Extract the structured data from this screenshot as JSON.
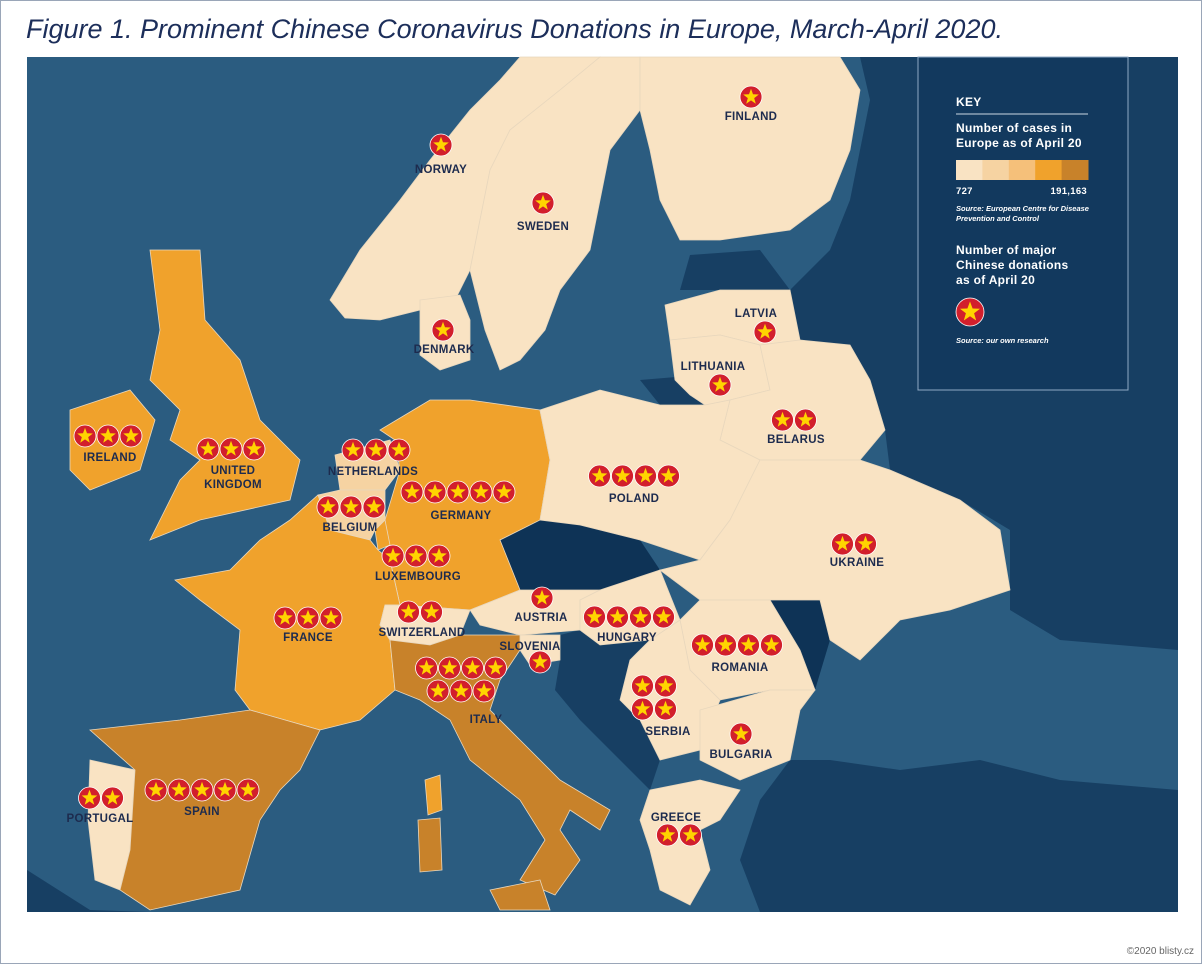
{
  "title": "Figure 1. Prominent Chinese Coronavirus Donations in Europe, March-April 2020.",
  "key": {
    "heading": "KEY",
    "cases_label": "Number of cases in Europe as of April 20",
    "scale_colors": [
      "#f9e3c3",
      "#f6d3a2",
      "#f5c07a",
      "#f0a22c",
      "#c8822a"
    ],
    "scale": [
      727,
      {
        "value": 191163,
        "label": "191,163"
      }
    ],
    "cases_source": "Source: European Centre for Disease Prevention and Control",
    "donations_label": "Number of major Chinese donations as of April 20",
    "donations_source": "Source: our own research"
  },
  "countries": [
    {
      "name": "NORWAY",
      "donations": 1,
      "color": "#f9e3c3"
    },
    {
      "name": "SWEDEN",
      "donations": 1,
      "color": "#f9e3c3"
    },
    {
      "name": "FINLAND",
      "donations": 1,
      "color": "#f9e3c3"
    },
    {
      "name": "DENMARK",
      "donations": 1,
      "color": "#f9e3c3"
    },
    {
      "name": "LATVIA",
      "donations": 1,
      "color": "#f9e3c3"
    },
    {
      "name": "LITHUANIA",
      "donations": 1,
      "color": "#f9e3c3"
    },
    {
      "name": "BELARUS",
      "donations": 2,
      "color": "#f9e3c3"
    },
    {
      "name": "IRELAND",
      "donations": 3,
      "color": "#f0a22c"
    },
    {
      "name": "UNITED KINGDOM",
      "donations": 3,
      "color": "#f0a22c"
    },
    {
      "name": "NETHERLANDS",
      "donations": 3,
      "color": "#f6d3a2"
    },
    {
      "name": "GERMANY",
      "donations": 5,
      "color": "#f0a22c"
    },
    {
      "name": "BELGIUM",
      "donations": 3,
      "color": "#f6d3a2"
    },
    {
      "name": "POLAND",
      "donations": 4,
      "color": "#f9e3c3"
    },
    {
      "name": "UKRAINE",
      "donations": 2,
      "color": "#f9e3c3"
    },
    {
      "name": "LUXEMBOURG",
      "donations": 3,
      "color": "#f0a22c"
    },
    {
      "name": "FRANCE",
      "donations": 3,
      "color": "#f0a22c"
    },
    {
      "name": "SWITZERLAND",
      "donations": 2,
      "color": "#f9e3c3"
    },
    {
      "name": "AUSTRIA",
      "donations": 1,
      "color": "#f9e3c3"
    },
    {
      "name": "HUNGARY",
      "donations": 4,
      "color": "#f9e3c3"
    },
    {
      "name": "SLOVENIA",
      "donations": 1,
      "color": "#f9e3c3"
    },
    {
      "name": "ROMANIA",
      "donations": 4,
      "color": "#f9e3c3"
    },
    {
      "name": "ITALY",
      "donations": 7,
      "color": "#c8822a"
    },
    {
      "name": "SERBIA",
      "donations": 4,
      "color": "#f9e3c3"
    },
    {
      "name": "BULGARIA",
      "donations": 1,
      "color": "#f9e3c3"
    },
    {
      "name": "GREECE",
      "donations": 2,
      "color": "#f9e3c3"
    },
    {
      "name": "PORTUGAL",
      "donations": 2,
      "color": "#f9e3c3"
    },
    {
      "name": "SPAIN",
      "donations": 5,
      "color": "#c8822a"
    }
  ],
  "footer": "©2020 blisty.cz"
}
